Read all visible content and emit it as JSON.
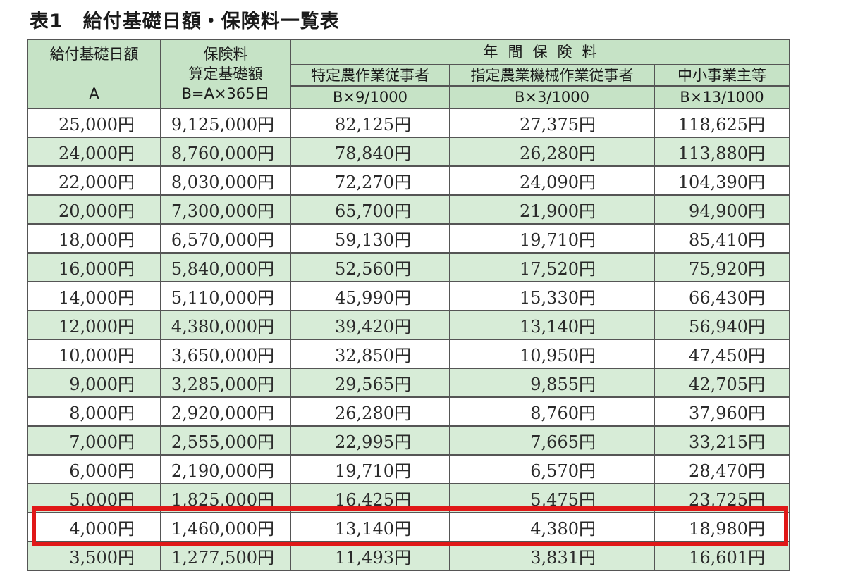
{
  "title": "表1　給付基礎日額・保険料一覧表",
  "header": {
    "col_a_line1": "給付基礎日額",
    "col_a_line2": "A",
    "col_b_line1": "保険料",
    "col_b_line2": "算定基礎額",
    "col_b_line3": "B=A×365日",
    "annual_group": "年間保険料",
    "col_c_line1": "特定農作業従事者",
    "col_c_line2": "B×9/1000",
    "col_d_line1": "指定農業機械作業従事者",
    "col_d_line2": "B×3/1000",
    "col_e_line1": "中小事業主等",
    "col_e_line2": "B×13/1000"
  },
  "rows": [
    [
      "25,000円",
      "9,125,000円",
      "82,125円",
      "27,375円",
      "118,625円"
    ],
    [
      "24,000円",
      "8,760,000円",
      "78,840円",
      "26,280円",
      "113,880円"
    ],
    [
      "22,000円",
      "8,030,000円",
      "72,270円",
      "24,090円",
      "104,390円"
    ],
    [
      "20,000円",
      "7,300,000円",
      "65,700円",
      "21,900円",
      "94,900円"
    ],
    [
      "18,000円",
      "6,570,000円",
      "59,130円",
      "19,710円",
      "85,410円"
    ],
    [
      "16,000円",
      "5,840,000円",
      "52,560円",
      "17,520円",
      "75,920円"
    ],
    [
      "14,000円",
      "5,110,000円",
      "45,990円",
      "15,330円",
      "66,430円"
    ],
    [
      "12,000円",
      "4,380,000円",
      "39,420円",
      "13,140円",
      "56,940円"
    ],
    [
      "10,000円",
      "3,650,000円",
      "32,850円",
      "10,950円",
      "47,450円"
    ],
    [
      "9,000円",
      "3,285,000円",
      "29,565円",
      "9,855円",
      "42,705円"
    ],
    [
      "8,000円",
      "2,920,000円",
      "26,280円",
      "8,760円",
      "37,960円"
    ],
    [
      "7,000円",
      "2,555,000円",
      "22,995円",
      "7,665円",
      "33,215円"
    ],
    [
      "6,000円",
      "2,190,000円",
      "19,710円",
      "6,570円",
      "28,470円"
    ],
    [
      "5,000円",
      "1,825,000円",
      "16,425円",
      "5,475円",
      "23,725円"
    ],
    [
      "4,000円",
      "1,460,000円",
      "13,140円",
      "4,380円",
      "18,980円"
    ],
    [
      "3,500円",
      "1,277,500円",
      "11,493円",
      "3,831円",
      "16,601円"
    ]
  ],
  "highlighted_row": 14,
  "colors": {
    "header_bg": "#c6e3c6",
    "stripe_bg": "#d7ecd7",
    "highlight_border": "#e01818"
  }
}
